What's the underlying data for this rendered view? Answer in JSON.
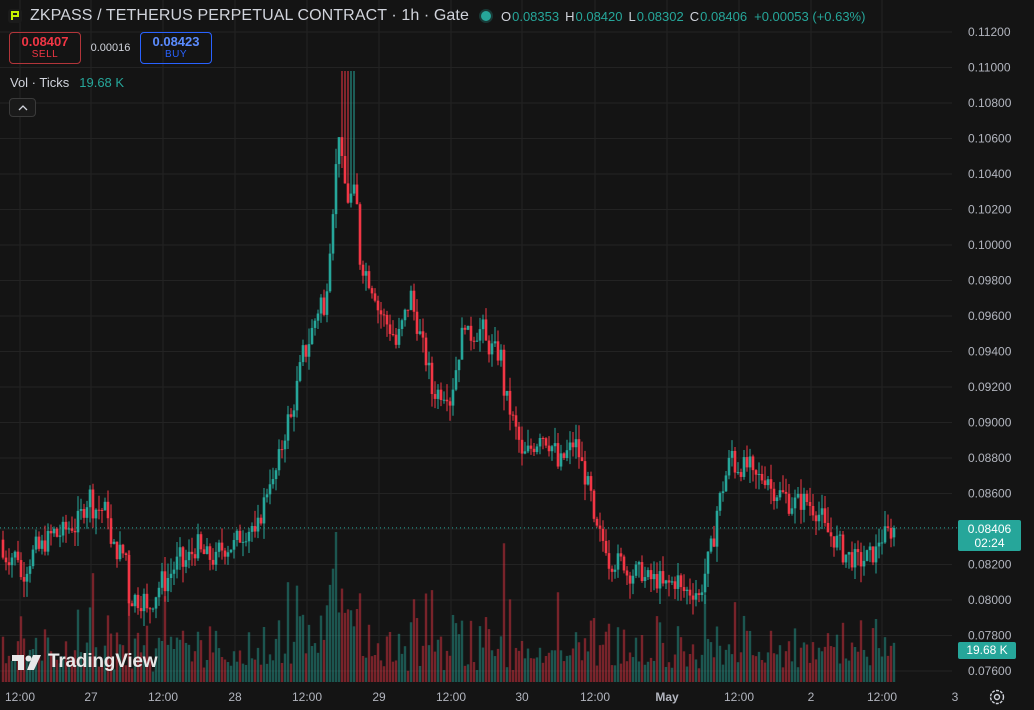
{
  "header": {
    "title": "ZKPASS / TETHERUS PERPETUAL CONTRACT · 1h · Gate",
    "logo_icon": "zkpass-logo-icon",
    "status_icon": "market-status-dot-icon",
    "ohlc": [
      {
        "k": "O",
        "v": "0.08353"
      },
      {
        "k": "H",
        "v": "0.08420"
      },
      {
        "k": "L",
        "v": "0.08302"
      },
      {
        "k": "C",
        "v": "0.08406"
      },
      {
        "k": "",
        "v": "+0.00053 (+0.63%)"
      }
    ]
  },
  "trade": {
    "sell_price": "0.08407",
    "sell_label": "SELL",
    "spread": "0.00016",
    "buy_price": "0.08423",
    "buy_label": "BUY"
  },
  "volume_legend": {
    "label": "Vol · Ticks",
    "value": "19.68 K"
  },
  "collapse_icon": "chevron-up-icon",
  "last_price_tag": {
    "price": "0.08406",
    "countdown": "02:24"
  },
  "volume_tag": "19.68 K",
  "brand": {
    "name": "TradingView",
    "icon": "tradingview-logo-icon"
  },
  "settings_icon": "gear-icon",
  "colors": {
    "up": "#26a69a",
    "down": "#f23645",
    "background": "#141414",
    "grid": "#232323"
  },
  "chart_data": {
    "type": "candlestick",
    "title": "",
    "interval": "1h",
    "y_axis": {
      "position": "right",
      "ylim": [
        0.0745,
        0.1128
      ],
      "ticks": [
        "0.11200",
        "0.11000",
        "0.10800",
        "0.10600",
        "0.10400",
        "0.10200",
        "0.10000",
        "0.09800",
        "0.09600",
        "0.09400",
        "0.09200",
        "0.09000",
        "0.08800",
        "0.08600",
        "0.08400",
        "0.08200",
        "0.08000",
        "0.07800",
        "0.07600"
      ]
    },
    "x_axis": {
      "tick_labels": [
        "12:00",
        "27",
        "12:00",
        "28",
        "12:00",
        "29",
        "12:00",
        "30",
        "12:00",
        "May",
        "12:00",
        "2",
        "12:00",
        "3"
      ],
      "bold_labels": [
        "May"
      ]
    },
    "grid": true,
    "last_price": 0.08406,
    "anchors": [
      [
        0.0834,
        0.0824
      ],
      [
        0.0826,
        0.0812
      ],
      [
        0.0833,
        0.0828
      ],
      [
        0.084,
        0.0836
      ],
      [
        0.0843,
        0.084
      ],
      [
        0.0862,
        0.0852
      ],
      [
        0.085,
        0.083
      ],
      [
        0.0825,
        0.0802
      ],
      [
        0.08,
        0.0791
      ],
      [
        0.0813,
        0.0808
      ],
      [
        0.0825,
        0.0818
      ],
      [
        0.0832,
        0.0827
      ],
      [
        0.0822,
        0.0828
      ],
      [
        0.0831,
        0.0833
      ],
      [
        0.0842,
        0.0828
      ],
      [
        0.087,
        0.0858
      ],
      [
        0.0902,
        0.0893
      ],
      [
        0.0948,
        0.094
      ],
      [
        0.0975,
        0.0957
      ],
      [
        0.1083,
        0.1037
      ],
      [
        0.1015,
        0.0993
      ],
      [
        0.0971,
        0.0965
      ],
      [
        0.0948,
        0.0942
      ],
      [
        0.0975,
        0.0965
      ],
      [
        0.0925,
        0.0917
      ],
      [
        0.0918,
        0.0908
      ],
      [
        0.0962,
        0.0948
      ],
      [
        0.0953,
        0.0945
      ],
      [
        0.0937,
        0.0922
      ],
      [
        0.0888,
        0.0878
      ],
      [
        0.089,
        0.0897
      ],
      [
        0.0884,
        0.0873
      ],
      [
        0.0888,
        0.0893
      ],
      [
        0.0858,
        0.0843
      ],
      [
        0.0829,
        0.0822
      ],
      [
        0.0821,
        0.0815
      ],
      [
        0.0816,
        0.0812
      ],
      [
        0.0811,
        0.0807
      ],
      [
        0.0812,
        0.0805
      ],
      [
        0.0805,
        0.0799
      ],
      [
        0.084,
        0.0848
      ],
      [
        0.0887,
        0.0875
      ],
      [
        0.0875,
        0.0868
      ],
      [
        0.087,
        0.0863
      ],
      [
        0.0858,
        0.0854
      ],
      [
        0.0856,
        0.0857
      ],
      [
        0.0846,
        0.0841
      ],
      [
        0.0831,
        0.0827
      ],
      [
        0.0822,
        0.0821
      ],
      [
        0.0827,
        0.0833
      ],
      [
        0.084,
        0.0841
      ]
    ],
    "volume": {
      "scale_max": 19.68,
      "unit": "K ticks",
      "last": 19.68
    }
  }
}
